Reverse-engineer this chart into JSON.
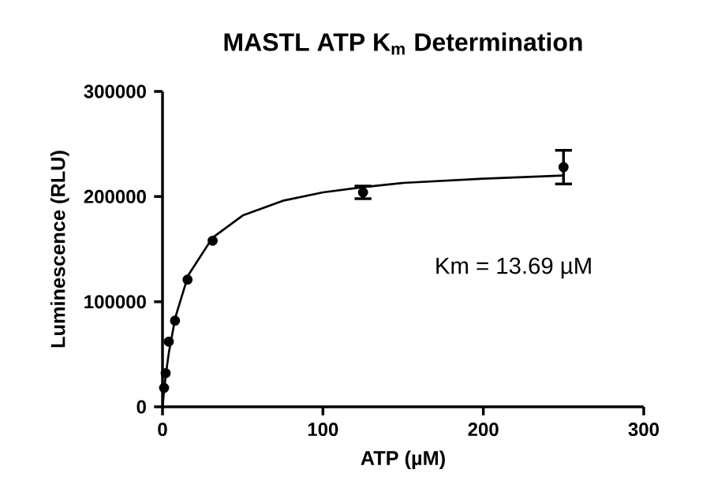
{
  "chart_data": {
    "type": "scatter",
    "title": "MASTL ATP K$_{m}$ Determination",
    "xlabel": "ATP (µM)",
    "ylabel": "Luminescence (RLU)",
    "annotations": [
      "Km = 13.69 µM"
    ],
    "xlim": [
      0,
      300
    ],
    "xticks": [
      0,
      100,
      200,
      300
    ],
    "ylim": [
      0,
      300000
    ],
    "yticks": [
      0,
      100000,
      200000,
      300000
    ],
    "marker": "circle",
    "series": [
      {
        "color": "#000000",
        "x": [
          0.98,
          1.95,
          3.9,
          7.8,
          15.6,
          31.25,
          125,
          250
        ],
        "values": [
          18000,
          32000,
          62000,
          82000,
          121000,
          158000,
          204000,
          228000
        ],
        "errors": [
          null,
          null,
          null,
          null,
          null,
          null,
          6000,
          16000
        ]
      },
      {
        "type": "line",
        "color": "#000000",
        "marker": "none",
        "line_style": "solid",
        "x": [
          0,
          1,
          2,
          4,
          8,
          16,
          31.25,
          50,
          75,
          100,
          125,
          150,
          200,
          250
        ],
        "values": [
          0,
          16000,
          30000,
          52000,
          85000,
          125000,
          161000,
          182000,
          196000,
          204000,
          209000,
          213000,
          217000,
          220000
        ]
      }
    ]
  }
}
